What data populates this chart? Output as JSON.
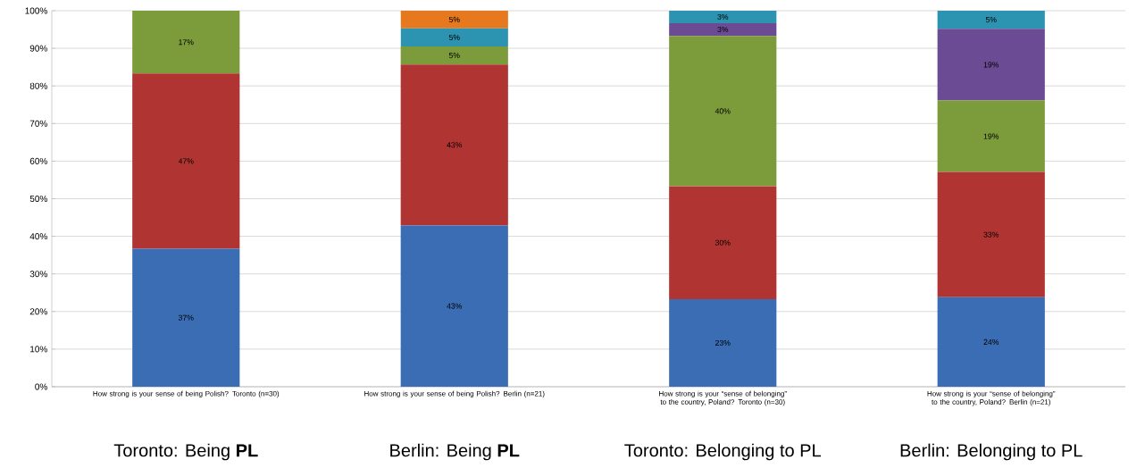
{
  "chart_data": {
    "type": "bar",
    "stacked": true,
    "grid": "y",
    "categories": [
      "How strong is your sense of being Polish? Toronto (n=30)",
      "How strong is your sense of being Polish? Berlin (n=21)",
      "How strong is your “sense of belonging” to the country, Poland? Toronto (n=30)",
      "How strong is your “sense of belonging” to the country, Poland? Berlin (n=21)"
    ],
    "ylim": [
      0,
      100
    ],
    "yticks": [
      {
        "value": 0,
        "label": "0%"
      },
      {
        "value": 10,
        "label": "10%"
      },
      {
        "value": 20,
        "label": "20%"
      },
      {
        "value": 30,
        "label": "30%"
      },
      {
        "value": 40,
        "label": "40%"
      },
      {
        "value": 50,
        "label": "50%"
      },
      {
        "value": 60,
        "label": "60%"
      },
      {
        "value": 70,
        "label": "70%"
      },
      {
        "value": 80,
        "label": "80%"
      },
      {
        "value": 90,
        "label": "90%"
      },
      {
        "value": 100,
        "label": "100%"
      }
    ],
    "series": [
      {
        "color": "#3a6db3",
        "values": [
          36.7,
          42.9,
          23.3,
          23.8
        ],
        "value_labels": [
          "37%",
          "43%",
          "23%",
          "24%"
        ]
      },
      {
        "color": "#b03532",
        "values": [
          46.6,
          42.8,
          30.0,
          33.3
        ],
        "value_labels": [
          "47%",
          "43%",
          "30%",
          "33%"
        ]
      },
      {
        "color": "#7c9b3b",
        "values": [
          16.7,
          4.8,
          40.0,
          19.0
        ],
        "value_labels": [
          "17%",
          "5%",
          "40%",
          "19%"
        ]
      },
      {
        "color": "#6b4b93",
        "values": [
          null,
          null,
          3.4,
          19.1
        ],
        "value_labels": [
          null,
          null,
          "3%",
          "19%"
        ]
      },
      {
        "color": "#2c94b1",
        "values": [
          null,
          4.8,
          3.3,
          4.8
        ],
        "value_labels": [
          null,
          "5%",
          "3%",
          "5%"
        ]
      },
      {
        "color": "#e6781e",
        "values": [
          null,
          4.7,
          null,
          null
        ],
        "value_labels": [
          null,
          "5%",
          null,
          null
        ]
      }
    ],
    "annotations": [
      "Toronto: Being **PL**",
      "Berlin: Being **PL**",
      "Toronto: Belonging to PL",
      "Berlin: Belonging to PL"
    ]
  }
}
